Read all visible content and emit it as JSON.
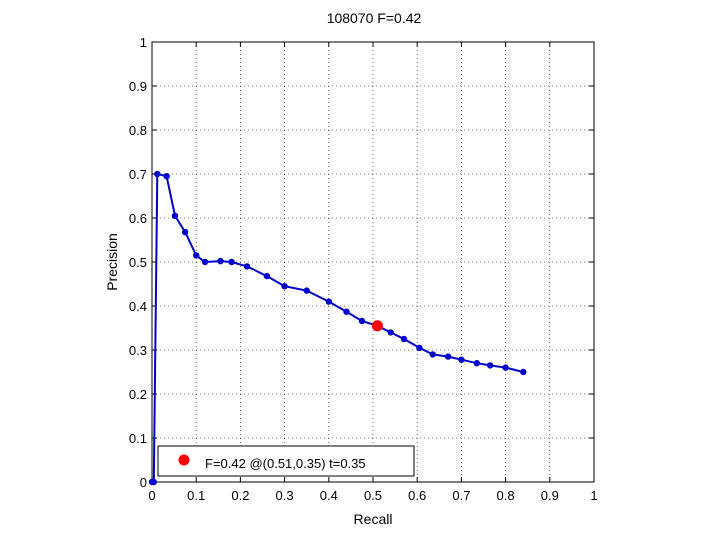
{
  "chart_data": {
    "type": "line",
    "title": "108070 F=0.42",
    "xlabel": "Recall",
    "ylabel": "Precision",
    "xlim": [
      0,
      1
    ],
    "ylim": [
      0,
      1
    ],
    "grid": true,
    "xticks": [
      0,
      0.1,
      0.2,
      0.3,
      0.4,
      0.5,
      0.6,
      0.7,
      0.8,
      0.9,
      1
    ],
    "yticks": [
      0,
      0.1,
      0.2,
      0.3,
      0.4,
      0.5,
      0.6,
      0.7,
      0.8,
      0.9,
      1
    ],
    "xtick_labels": [
      "0",
      "0.1",
      "0.2",
      "0.3",
      "0.4",
      "0.5",
      "0.6",
      "0.7",
      "0.8",
      "0.9",
      "1"
    ],
    "ytick_labels": [
      "0",
      "0.1",
      "0.2",
      "0.3",
      "0.4",
      "0.5",
      "0.6",
      "0.7",
      "0.8",
      "0.9",
      "1"
    ],
    "series": [
      {
        "color": "#0000cc",
        "x": [
          0.0,
          0.004,
          0.012,
          0.033,
          0.052,
          0.075,
          0.1,
          0.12,
          0.155,
          0.18,
          0.215,
          0.26,
          0.3,
          0.35,
          0.4,
          0.44,
          0.475,
          0.51,
          0.54,
          0.57,
          0.605,
          0.635,
          0.67,
          0.7,
          0.735,
          0.765,
          0.8,
          0.84
        ],
        "y": [
          0.0,
          0.0,
          0.7,
          0.695,
          0.605,
          0.568,
          0.515,
          0.5,
          0.502,
          0.5,
          0.49,
          0.468,
          0.445,
          0.435,
          0.41,
          0.387,
          0.366,
          0.355,
          0.34,
          0.325,
          0.305,
          0.29,
          0.285,
          0.278,
          0.27,
          0.265,
          0.26,
          0.25
        ]
      }
    ],
    "highlight": {
      "x": 0.51,
      "y": 0.355,
      "color": "#ff0000"
    },
    "legend": {
      "placement": "bottom-left",
      "label": "F=0.42 @(0.51,0.35) t=0.35"
    }
  }
}
